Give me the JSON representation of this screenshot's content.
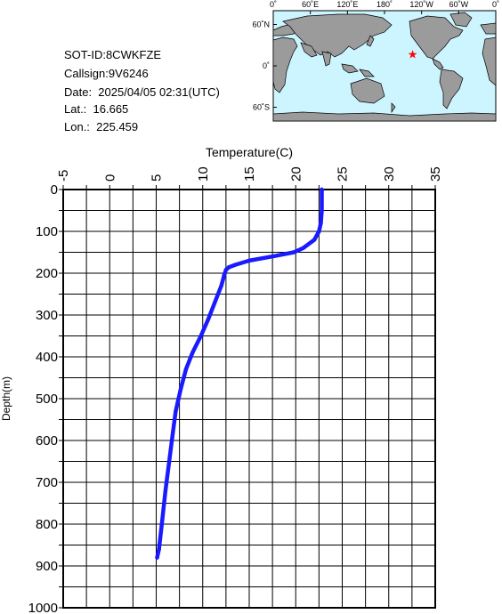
{
  "info": {
    "sot_id": "SOT-ID:8CWKFZE",
    "callsign": "Callsign:9V6246",
    "date": "Date:  2025/04/05 02:31(UTC)",
    "lat": "Lat.:  16.665",
    "lon": "Lon.:  225.459"
  },
  "map": {
    "lon_labels": [
      "0˚",
      "60˚E",
      "120˚E",
      "180˚",
      "120˚W",
      "60˚W",
      "0˚"
    ],
    "lat_labels": [
      "60˚N",
      "0˚",
      "60˚S"
    ],
    "ocean_color": "#ccf5ff",
    "land_color": "#9b9b9b",
    "marker_color": "#ff0000",
    "marker": {
      "lat": 16.665,
      "lon": 225.459
    }
  },
  "chart_data": {
    "type": "line",
    "xlabel": "Temperature(C)",
    "ylabel": "Depth(m)",
    "xlim": [
      -5,
      35
    ],
    "ylim": [
      1000,
      0
    ],
    "x_ticks": [
      "-5",
      "0",
      "5",
      "10",
      "15",
      "20",
      "25",
      "30",
      "35"
    ],
    "y_ticks": [
      "0",
      "100",
      "200",
      "300",
      "400",
      "500",
      "600",
      "700",
      "800",
      "900",
      "1000"
    ],
    "grid": true,
    "line_color": "#1a1aff",
    "series": [
      {
        "x": [
          22.8,
          22.8,
          22.7,
          22.5,
          22.0,
          20.8,
          19.8,
          17.5,
          15.0,
          13.5,
          12.8,
          12.5,
          12.3,
          12.0,
          11.3,
          10.6,
          9.8,
          8.9,
          8.2,
          7.6,
          7.1,
          6.8,
          6.4,
          6.0,
          5.6,
          5.3,
          5.1
        ],
        "y": [
          0,
          50,
          80,
          100,
          120,
          140,
          150,
          160,
          170,
          180,
          186,
          192,
          205,
          230,
          270,
          310,
          350,
          390,
          430,
          480,
          530,
          580,
          650,
          720,
          800,
          860,
          880
        ]
      }
    ]
  }
}
